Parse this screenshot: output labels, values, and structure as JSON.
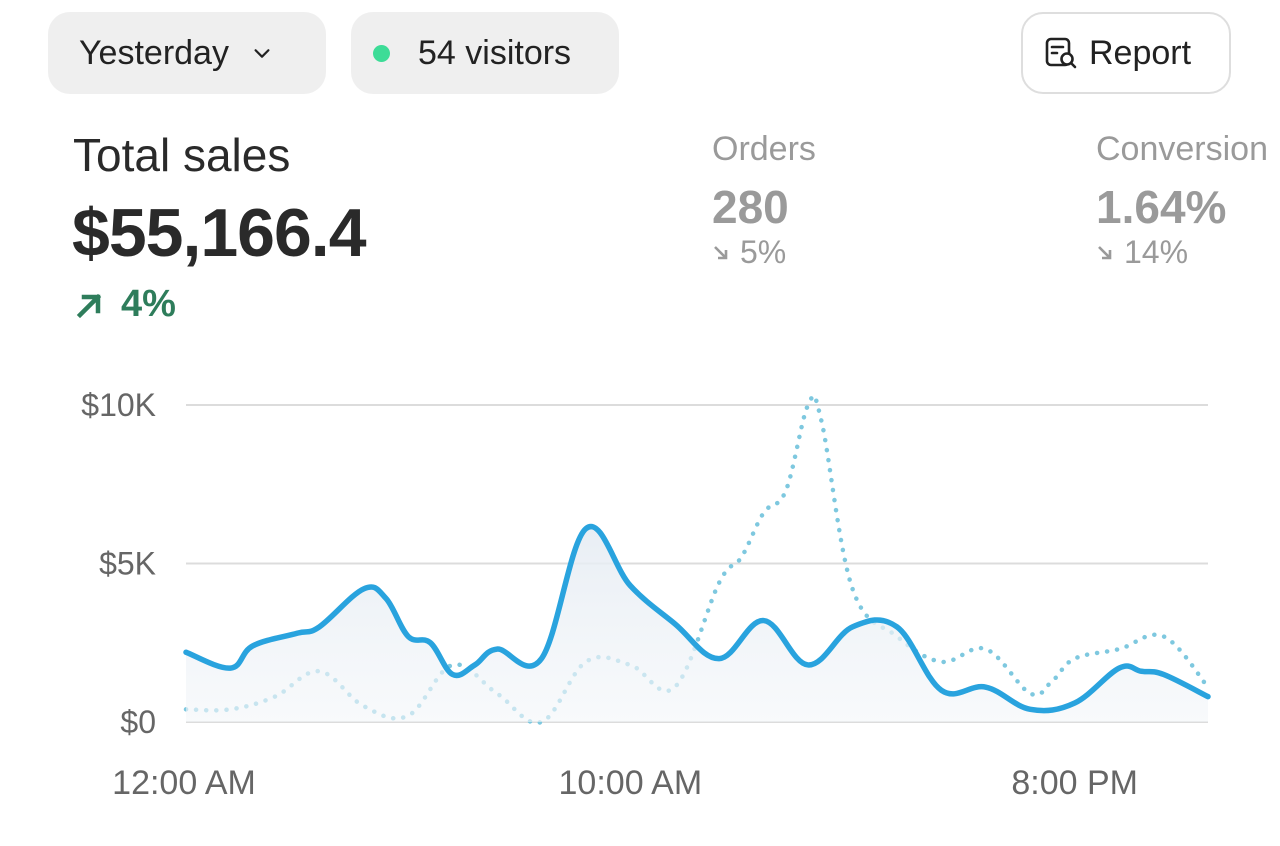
{
  "toolbar": {
    "date_label": "Yesterday",
    "visitors_label": "54 visitors",
    "visitors_dot_color": "#3ddc97",
    "report_label": "Report"
  },
  "summary": {
    "total": {
      "label": "Total sales",
      "value": "$55,166.4",
      "change": "4%",
      "direction": "up",
      "color": "#2e7d5b"
    },
    "orders": {
      "label": "Orders",
      "value": "280",
      "change": "5%",
      "direction": "down"
    },
    "conversion": {
      "label": "Conversion",
      "value": "1.64%",
      "change": "14%",
      "direction": "down"
    }
  },
  "chart_data": {
    "type": "line",
    "y_ticks": [
      {
        "value": 10000,
        "label": "$10K"
      },
      {
        "value": 5000,
        "label": "$5K"
      },
      {
        "value": 0,
        "label": "$0"
      }
    ],
    "x_ticks": [
      {
        "hour": 0,
        "label": "12:00 AM"
      },
      {
        "hour": 10,
        "label": "10:00 AM"
      },
      {
        "hour": 20,
        "label": "8:00 PM"
      }
    ],
    "xlim": [
      0,
      23
    ],
    "ylim": [
      0,
      10000
    ],
    "grid": true,
    "series": [
      {
        "style": "solid",
        "color": "#29a3de",
        "fill": true,
        "x": [
          0,
          1,
          1.5,
          2.5,
          3,
          4,
          4.5,
          5,
          5.5,
          6,
          6.5,
          7,
          8,
          9,
          10,
          11,
          12,
          13,
          14,
          15,
          16,
          17,
          18,
          19,
          20,
          21,
          21.5,
          22,
          23
        ],
        "y": [
          2200,
          1700,
          2400,
          2800,
          3000,
          4200,
          3900,
          2700,
          2500,
          1500,
          1800,
          2300,
          2000,
          6100,
          4300,
          3100,
          2000,
          3200,
          1800,
          3000,
          3000,
          1000,
          1100,
          400,
          600,
          1700,
          1600,
          1500,
          800
        ]
      },
      {
        "style": "dotted",
        "color": "#7ec8df",
        "fill": false,
        "x": [
          0,
          1,
          2,
          3,
          4,
          5,
          6,
          7,
          8,
          9,
          10,
          11,
          12,
          12.5,
          13,
          13.5,
          14,
          14.3,
          15,
          16,
          17,
          18,
          19,
          19.5,
          20,
          21,
          22,
          23
        ],
        "y": [
          400,
          400,
          800,
          1600,
          500,
          200,
          1800,
          900,
          0,
          1900,
          1800,
          1100,
          4400,
          5200,
          6600,
          7300,
          10000,
          9500,
          4200,
          2700,
          1900,
          2300,
          900,
          1300,
          2000,
          2300,
          2700,
          1100
        ]
      }
    ]
  }
}
